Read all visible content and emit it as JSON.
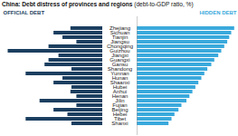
{
  "chart_data": {
    "type": "bar",
    "orientation": "horizontal",
    "title": "China: Debt distress of provinces and regions",
    "subtitle": "(debt-to-GDP ratio, %)",
    "categories": [
      "Zhejiang",
      "Sichuan",
      "Tianjin",
      "Jiangsu",
      "Chongqing",
      "Guizhou",
      "Jiangxi",
      "Guangxi",
      "Gansu",
      "Shandong",
      "Yunnan",
      "Hunan",
      "Shaanxi",
      "Hubei",
      "Anhui",
      "Henan",
      "Jilin",
      "Fujian",
      "Beijing",
      "Hebei",
      "Tibet",
      "Shanxi"
    ],
    "series": [
      {
        "name": "OFFICIAL DEBT",
        "color": "#1c3f60",
        "values": [
          32,
          49,
          40,
          26,
          54,
          95,
          44,
          54,
          58,
          31,
          77,
          40,
          49,
          31,
          32,
          26,
          63,
          26,
          49,
          35,
          77,
          31
        ]
      },
      {
        "name": "HIDDEN DEBT",
        "color": "#3aa9dc",
        "values": [
          98,
          95,
          93,
          91,
          88,
          85,
          82,
          78,
          75,
          71,
          68,
          65,
          62,
          59,
          56,
          53,
          50,
          45,
          42,
          38,
          35,
          32
        ]
      }
    ],
    "xlim": [
      0,
      100
    ],
    "tick_labels": "y",
    "grid": false
  }
}
